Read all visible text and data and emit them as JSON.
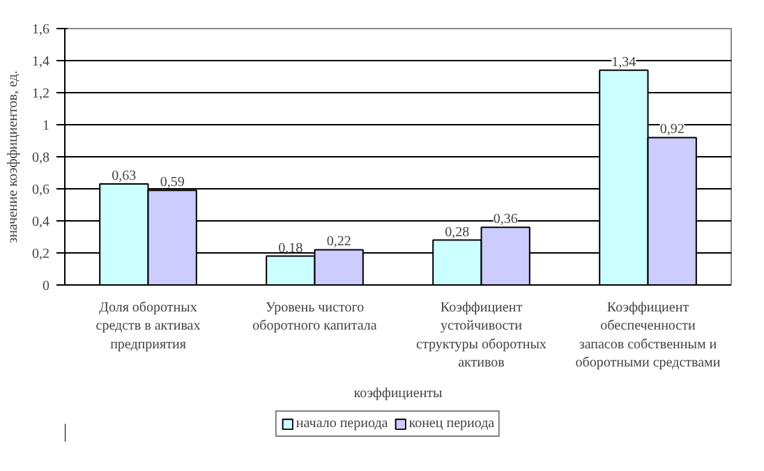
{
  "chart_data": {
    "type": "bar",
    "xlabel": "коэффициенты",
    "ylabel": "значение коэффициентов, ед.",
    "categories": [
      "Доля оборотных средств в активах предприятия",
      "Уровень чистого оборотного капитала",
      "Коэффициент устойчивости структуры оборотных активов",
      "Коэффициент обеспеченности запасов собственным и оборотными средствами"
    ],
    "series": [
      {
        "name": "начало периода",
        "color": "#ccffff",
        "values": [
          0.63,
          0.18,
          0.28,
          1.34
        ],
        "value_labels": [
          "0,63",
          "0,18",
          "0,28",
          "1,34"
        ]
      },
      {
        "name": "конец периода",
        "color": "#ccccff",
        "values": [
          0.59,
          0.22,
          0.36,
          0.92
        ],
        "value_labels": [
          "0,59",
          "0,22",
          "0,36",
          "0,92"
        ]
      }
    ],
    "ylim": [
      0,
      1.6
    ],
    "yticks": [
      0,
      {
        "value": 0.2,
        "label": "0,2"
      },
      {
        "value": 0.4,
        "label": "0,4"
      },
      {
        "value": 0.6,
        "label": "0,6"
      },
      {
        "value": 0.8,
        "label": "0,8"
      },
      1,
      {
        "value": 1.2,
        "label": "1,2"
      },
      {
        "value": 1.4,
        "label": "1,4"
      },
      {
        "value": 1.6,
        "label": "1,6"
      }
    ],
    "grid": "y",
    "legend": "bottom"
  }
}
